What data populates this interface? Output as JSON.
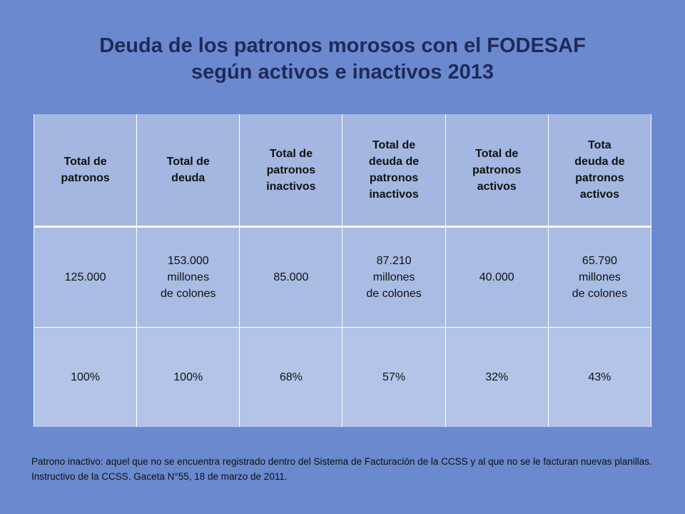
{
  "title": {
    "line1": "Deuda de los patronos morosos con el FODESAF",
    "line2": "según  activos e inactivos  2013"
  },
  "table": {
    "headers": [
      [
        "Total de",
        "patronos"
      ],
      [
        "Total de",
        "deuda"
      ],
      [
        "Total de",
        "patronos",
        "inactivos"
      ],
      [
        "Total de",
        "deuda de",
        "patronos",
        "inactivos"
      ],
      [
        "Total de",
        "patronos",
        "activos"
      ],
      [
        "Tota",
        "deuda de",
        "patronos",
        "activos"
      ]
    ],
    "rows": [
      [
        [
          "125.000"
        ],
        [
          "153.000",
          "millones",
          "de colones"
        ],
        [
          "85.000"
        ],
        [
          "87.210",
          "millones",
          "de colones"
        ],
        [
          "40.000"
        ],
        [
          "65.790",
          "millones",
          "de colones"
        ]
      ],
      [
        [
          "100%"
        ],
        [
          "100%"
        ],
        [
          "68%"
        ],
        [
          "57%"
        ],
        [
          "32%"
        ],
        [
          "43%"
        ]
      ]
    ]
  },
  "footnote": "Patrono inactivo: aquel que no se encuentra registrado dentro del Sistema de Facturación de la CCSS y al que no se le facturan nuevas planillas.  Instructivo de la CCSS. Gaceta N°55, 18 de marzo de 2011.",
  "colors": {
    "background": "#6a89cf",
    "title": "#1f2a5a",
    "header_fill": "#a3b7e1",
    "row_fill": "#a9bce4"
  }
}
